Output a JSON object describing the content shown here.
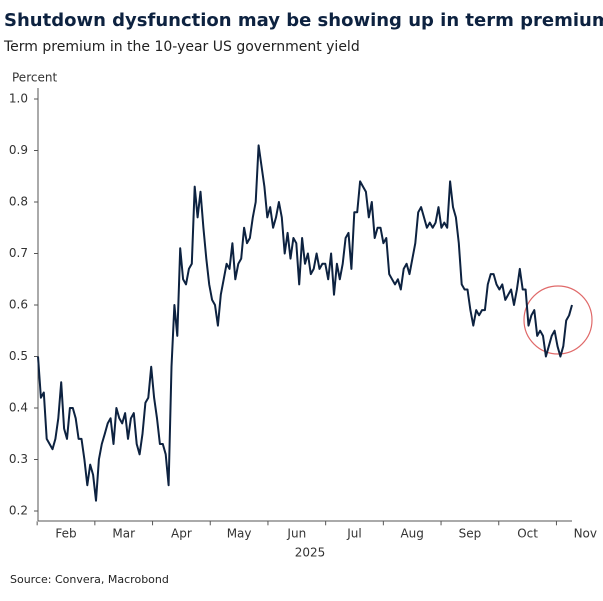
{
  "chart_data": {
    "type": "line",
    "title": "Shutdown dysfunction may be showing up in term premium",
    "subtitle": "Term premium in the 10-year US government yield",
    "y_label": "Percent",
    "x_labels": [
      "Feb",
      "Mar",
      "Apr",
      "May",
      "Jun",
      "Jul",
      "Aug",
      "Sep",
      "Oct",
      "Nov"
    ],
    "x_year": "2025",
    "source": "Source: Convera, Macrobond",
    "color": "#0d2240",
    "ylim": [
      0.18,
      1.02
    ],
    "yticks": [
      0.2,
      0.3,
      0.4,
      0.5,
      0.6,
      0.7,
      0.8,
      0.9,
      {
        "value": 1,
        "label": "1.0"
      }
    ],
    "values": [
      0.5,
      0.42,
      0.43,
      0.34,
      0.33,
      0.32,
      0.34,
      0.38,
      0.45,
      0.36,
      0.34,
      0.4,
      0.4,
      0.38,
      0.34,
      0.34,
      0.3,
      0.25,
      0.29,
      0.27,
      0.22,
      0.3,
      0.33,
      0.35,
      0.37,
      0.38,
      0.33,
      0.4,
      0.38,
      0.37,
      0.39,
      0.34,
      0.38,
      0.39,
      0.33,
      0.31,
      0.35,
      0.41,
      0.42,
      0.48,
      0.42,
      0.38,
      0.33,
      0.33,
      0.31,
      0.25,
      0.48,
      0.6,
      0.54,
      0.71,
      0.65,
      0.64,
      0.67,
      0.68,
      0.83,
      0.77,
      0.82,
      0.75,
      0.69,
      0.64,
      0.61,
      0.6,
      0.56,
      0.62,
      0.65,
      0.68,
      0.67,
      0.72,
      0.65,
      0.68,
      0.69,
      0.75,
      0.72,
      0.73,
      0.77,
      0.8,
      0.91,
      0.87,
      0.83,
      0.77,
      0.79,
      0.75,
      0.77,
      0.8,
      0.77,
      0.7,
      0.74,
      0.69,
      0.73,
      0.72,
      0.64,
      0.73,
      0.68,
      0.7,
      0.66,
      0.67,
      0.7,
      0.67,
      0.68,
      0.68,
      0.65,
      0.7,
      0.62,
      0.68,
      0.65,
      0.68,
      0.73,
      0.74,
      0.67,
      0.78,
      0.78,
      0.84,
      0.83,
      0.82,
      0.77,
      0.8,
      0.73,
      0.75,
      0.75,
      0.72,
      0.73,
      0.66,
      0.65,
      0.64,
      0.65,
      0.63,
      0.67,
      0.68,
      0.66,
      0.69,
      0.72,
      0.78,
      0.79,
      0.77,
      0.75,
      0.76,
      0.75,
      0.76,
      0.79,
      0.75,
      0.76,
      0.75,
      0.84,
      0.79,
      0.77,
      0.72,
      0.64,
      0.63,
      0.63,
      0.59,
      0.56,
      0.59,
      0.58,
      0.59,
      0.59,
      0.64,
      0.66,
      0.66,
      0.64,
      0.63,
      0.64,
      0.61,
      0.62,
      0.63,
      0.6,
      0.63,
      0.67,
      0.63,
      0.63,
      0.56,
      0.58,
      0.59,
      0.54,
      0.55,
      0.54,
      0.5,
      0.52,
      0.54,
      0.55,
      0.52,
      0.5,
      0.52,
      0.57,
      0.58,
      0.6
    ]
  }
}
